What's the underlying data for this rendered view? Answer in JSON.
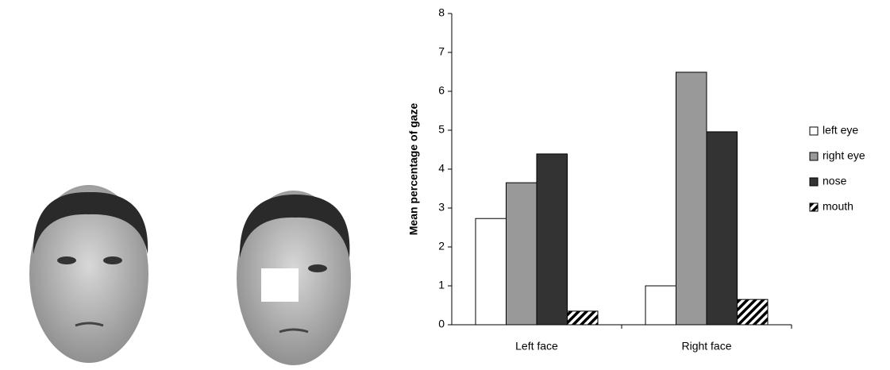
{
  "chart_data": {
    "type": "bar",
    "y_label": "Mean percentage of gaze",
    "categories": [
      "Left face",
      "Right face"
    ],
    "series": [
      {
        "name": "left eye",
        "color": "#ffffff",
        "values": [
          2.73,
          1.0
        ]
      },
      {
        "name": "right eye",
        "color": "#999999",
        "values": [
          3.65,
          6.49
        ]
      },
      {
        "name": "nose",
        "color": "#333333",
        "values": [
          4.39,
          4.96
        ]
      },
      {
        "name": "mouth",
        "color": "#ffffff",
        "pattern": "hatch",
        "values": [
          0.35,
          0.65
        ]
      }
    ],
    "ylim": [
      0,
      8
    ],
    "yticks": [
      0,
      1,
      2,
      3,
      4,
      5,
      6,
      7,
      8
    ],
    "grid": false,
    "legend": "right"
  }
}
